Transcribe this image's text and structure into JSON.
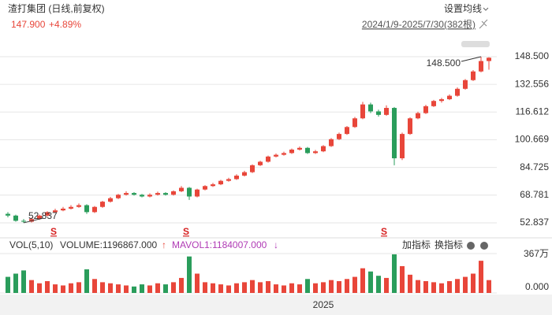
{
  "header": {
    "title": "渣打集团 (日线,前复权)",
    "price": "147.900",
    "change": "+4.89%",
    "ma_setting": "设置均线",
    "range": "2024/1/9-2025/7/30(382根)"
  },
  "chart_data": {
    "type": "candlestick",
    "up_color": "#e8463a",
    "down_color": "#2a9d5b",
    "ylim": [
      51.0,
      156.2
    ],
    "yticks": [
      {
        "value": 148.5,
        "label": "148.500"
      },
      132.556,
      116.612,
      100.669,
      84.725,
      68.781,
      52.837
    ],
    "grid": true,
    "max_label": "148.500",
    "min_label": "52.837",
    "markers": [
      "S",
      "S",
      "S"
    ],
    "x_label": "2025",
    "ohlc": [
      [
        58,
        59,
        56,
        57
      ],
      [
        57,
        57.5,
        53.5,
        54
      ],
      [
        54,
        55,
        52.837,
        53.5
      ],
      [
        53.5,
        55.8,
        53,
        55
      ],
      [
        55,
        57.6,
        54.5,
        57
      ],
      [
        57,
        59.5,
        56.5,
        59
      ],
      [
        59,
        61,
        58.5,
        60
      ],
      [
        60,
        62,
        59.5,
        61
      ],
      [
        61,
        63,
        60.5,
        62
      ],
      [
        62,
        64,
        61.5,
        63
      ],
      [
        63,
        63.5,
        58,
        59
      ],
      [
        59,
        62.5,
        58.5,
        62
      ],
      [
        62,
        65.5,
        61.5,
        65
      ],
      [
        65,
        67.8,
        64.5,
        67
      ],
      [
        67,
        69.5,
        66.5,
        69
      ],
      [
        69,
        71,
        68.5,
        70
      ],
      [
        70,
        70.5,
        68.5,
        69
      ],
      [
        69,
        69.5,
        67.5,
        68
      ],
      [
        68,
        69.8,
        67.5,
        69
      ],
      [
        69,
        70.8,
        68.5,
        70
      ],
      [
        70,
        70.5,
        68.5,
        69
      ],
      [
        69,
        71.5,
        68.5,
        71
      ],
      [
        71,
        74,
        70.5,
        73
      ],
      [
        73,
        73.5,
        66,
        68
      ],
      [
        68,
        72.5,
        67.5,
        72
      ],
      [
        72,
        74.5,
        71.5,
        74
      ],
      [
        74,
        75.8,
        73.5,
        75
      ],
      [
        75,
        77.6,
        74.5,
        77
      ],
      [
        77,
        78.8,
        76.5,
        78
      ],
      [
        78,
        80.8,
        77.5,
        80
      ],
      [
        80,
        82.8,
        79.5,
        82
      ],
      [
        82,
        86.5,
        81.5,
        86
      ],
      [
        86,
        88.6,
        85.5,
        88
      ],
      [
        88,
        91.5,
        87.5,
        91
      ],
      [
        91,
        92.8,
        90.5,
        92
      ],
      [
        92,
        93.8,
        91.5,
        93
      ],
      [
        93,
        95.6,
        92.5,
        95
      ],
      [
        95,
        96.8,
        94.5,
        96
      ],
      [
        96,
        96.5,
        92.5,
        93
      ],
      [
        93,
        94.8,
        92.5,
        94
      ],
      [
        94,
        97.6,
        93.5,
        97
      ],
      [
        97,
        101.6,
        96.5,
        101
      ],
      [
        101,
        104.8,
        100.5,
        104
      ],
      [
        104,
        108.6,
        103.5,
        108
      ],
      [
        108,
        113.8,
        107.5,
        113
      ],
      [
        113,
        122.5,
        112.5,
        121
      ],
      [
        121,
        122,
        116,
        117
      ],
      [
        117,
        118,
        114,
        115
      ],
      [
        115,
        120.5,
        114.5,
        119
      ],
      [
        119,
        119.5,
        86,
        90
      ],
      [
        90,
        104.8,
        89,
        104
      ],
      [
        104,
        113.6,
        103.5,
        113
      ],
      [
        113,
        116.8,
        112.5,
        116
      ],
      [
        116,
        120.8,
        115.5,
        120
      ],
      [
        120,
        123.6,
        119.5,
        123
      ],
      [
        123,
        124.8,
        122,
        124
      ],
      [
        124,
        126.8,
        123.5,
        126
      ],
      [
        126,
        130.8,
        125.5,
        130
      ],
      [
        130,
        135.6,
        129.5,
        135
      ],
      [
        135,
        140.8,
        134.5,
        140
      ],
      [
        140,
        148.5,
        139.5,
        146
      ],
      [
        146,
        148.2,
        141,
        147.9
      ]
    ],
    "volume_header": {
      "name": "VOL(5,10)",
      "volume": "VOLUME:1196867.000",
      "up_arrow": "↑",
      "mavol": "MAVOL1:1184007.000",
      "down_arrow": "↓",
      "add": "加指标",
      "switch": "换指标"
    },
    "vlim": [
      0,
      3670000
    ],
    "vticks": [
      {
        "value": 3670000,
        "label": "367万"
      },
      {
        "value": 0,
        "label": "0.000"
      }
    ],
    "volume": [
      1500000,
      1800000,
      2100000,
      1200000,
      900000,
      1100000,
      800000,
      700000,
      900000,
      1000000,
      2200000,
      1300000,
      1000000,
      900000,
      800000,
      700000,
      600000,
      800000,
      700000,
      900000,
      800000,
      1000000,
      1400000,
      3400000,
      1800000,
      1000000,
      900000,
      800000,
      700000,
      900000,
      1000000,
      1200000,
      1000000,
      1100000,
      800000,
      700000,
      900000,
      800000,
      1300000,
      900000,
      1000000,
      1200000,
      1100000,
      1300000,
      1500000,
      2300000,
      2000000,
      1600000,
      1400000,
      3600000,
      2500000,
      1700000,
      1200000,
      1100000,
      1000000,
      900000,
      1100000,
      1300000,
      1500000,
      1800000,
      3000000,
      1196867
    ]
  }
}
